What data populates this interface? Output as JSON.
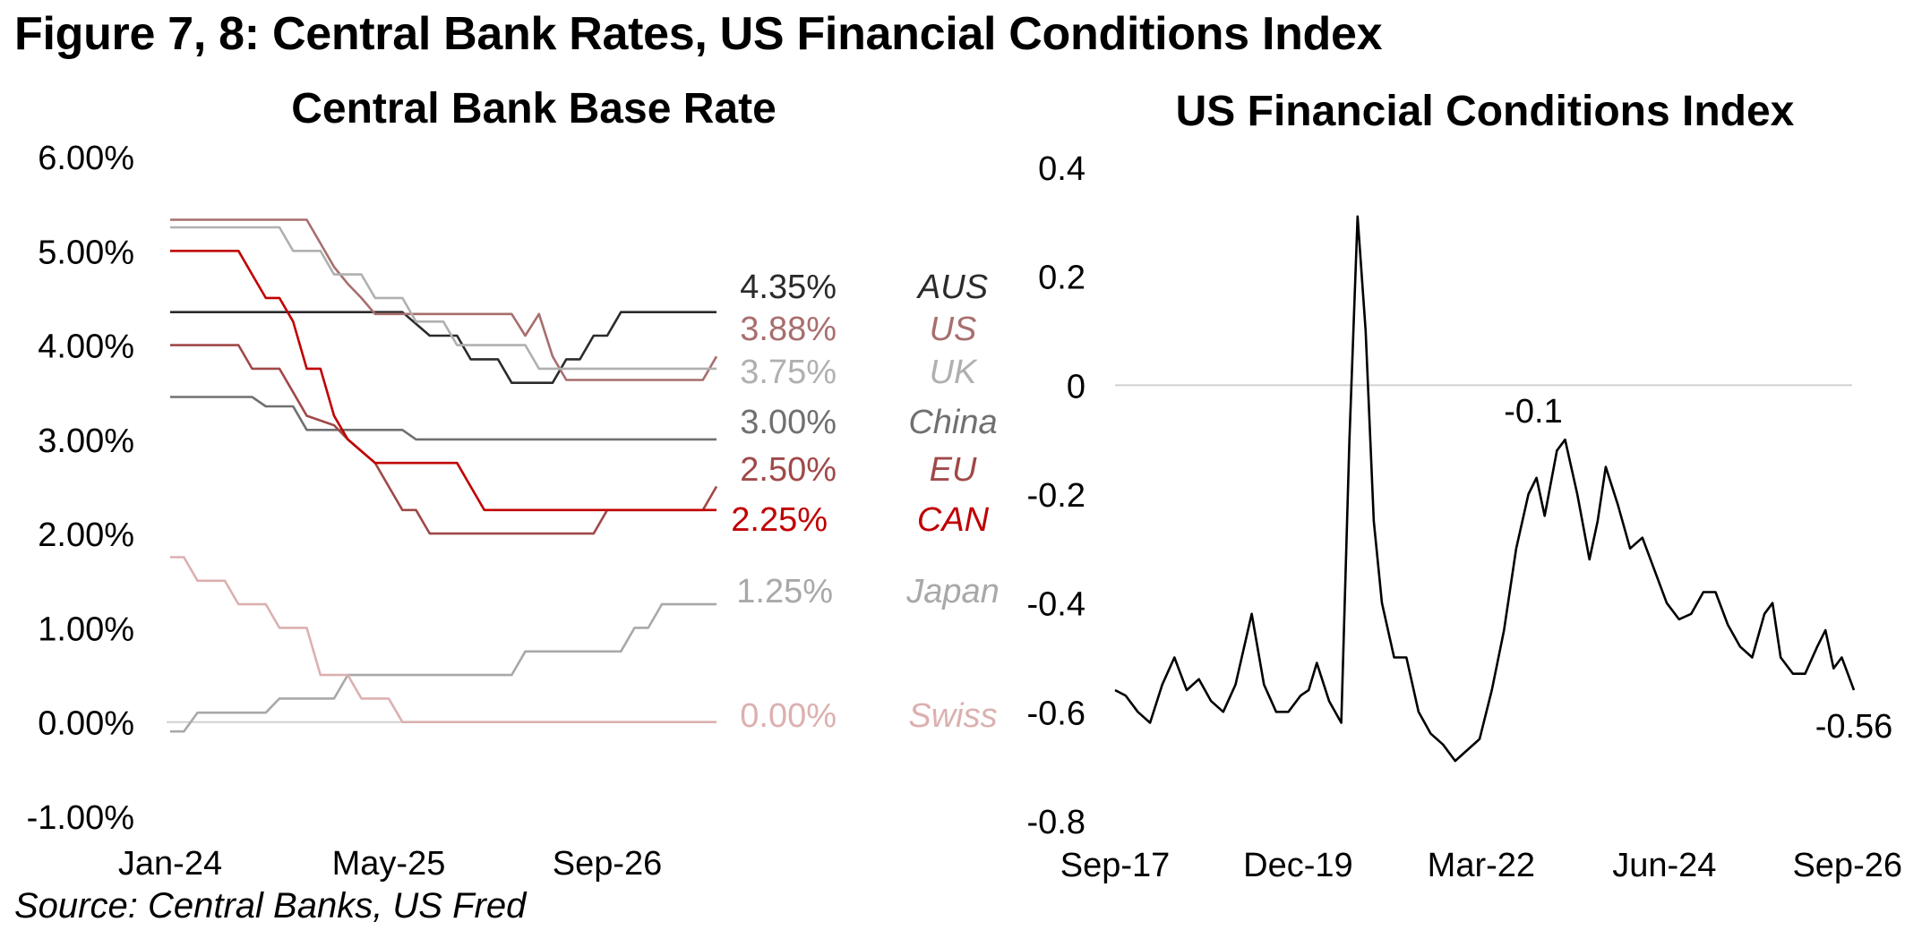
{
  "figure_title": "Figure 7, 8: Central Bank Rates, US Financial Conditions Index",
  "source": "Source: Central Banks, US Fred",
  "chart_data": [
    {
      "type": "line",
      "title": "Central Bank Base Rate",
      "y_ticks": [
        "6.00%",
        "5.00%",
        "4.00%",
        "3.00%",
        "2.00%",
        "1.00%",
        "0.00%",
        "-1.00%"
      ],
      "x_ticks": [
        "Jan-24",
        "May-25",
        "Sep-26"
      ],
      "ylim": [
        -1.0,
        6.0
      ],
      "xlim": [
        "2024-01",
        "2026-09"
      ],
      "baseline": 0,
      "series": [
        {
          "name": "AUS",
          "end_label": "4.35%",
          "color": "#2b2b2b",
          "points": [
            [
              0,
              4.35
            ],
            [
              17,
              4.35
            ],
            [
              19,
              4.1
            ],
            [
              21,
              4.1
            ],
            [
              22,
              3.85
            ],
            [
              24,
              3.85
            ],
            [
              25,
              3.6
            ],
            [
              28,
              3.6
            ],
            [
              29,
              3.85
            ],
            [
              30,
              3.85
            ],
            [
              31,
              4.1
            ],
            [
              32,
              4.1
            ],
            [
              33,
              4.35
            ],
            [
              40,
              4.35
            ]
          ]
        },
        {
          "name": "US",
          "end_label": "3.88%",
          "color": "#a86e6e",
          "points": [
            [
              0,
              5.33
            ],
            [
              10,
              5.33
            ],
            [
              11,
              5.08
            ],
            [
              12,
              4.83
            ],
            [
              13,
              4.65
            ],
            [
              14,
              4.5
            ],
            [
              15,
              4.33
            ],
            [
              25,
              4.33
            ],
            [
              26,
              4.1
            ],
            [
              27,
              4.33
            ],
            [
              28,
              3.88
            ],
            [
              29,
              3.63
            ],
            [
              38,
              3.63
            ],
            [
              39,
              3.63
            ],
            [
              40,
              3.88
            ]
          ]
        },
        {
          "name": "UK",
          "end_label": "3.75%",
          "color": "#b0b0b0",
          "points": [
            [
              0,
              5.25
            ],
            [
              8,
              5.25
            ],
            [
              9,
              5.0
            ],
            [
              11,
              5.0
            ],
            [
              12,
              4.75
            ],
            [
              14,
              4.75
            ],
            [
              15,
              4.5
            ],
            [
              17,
              4.5
            ],
            [
              18,
              4.25
            ],
            [
              20,
              4.25
            ],
            [
              21,
              4.0
            ],
            [
              25,
              4.0
            ],
            [
              26,
              4.0
            ],
            [
              27,
              3.75
            ],
            [
              40,
              3.75
            ]
          ]
        },
        {
          "name": "China",
          "end_label": "3.00%",
          "color": "#707070",
          "points": [
            [
              0,
              3.45
            ],
            [
              6,
              3.45
            ],
            [
              7,
              3.35
            ],
            [
              9,
              3.35
            ],
            [
              10,
              3.1
            ],
            [
              17,
              3.1
            ],
            [
              18,
              3.0
            ],
            [
              40,
              3.0
            ]
          ]
        },
        {
          "name": "EU",
          "end_label": "2.50%",
          "color": "#a04848",
          "points": [
            [
              0,
              4.0
            ],
            [
              5,
              4.0
            ],
            [
              6,
              3.75
            ],
            [
              8,
              3.75
            ],
            [
              9,
              3.5
            ],
            [
              10,
              3.25
            ],
            [
              12,
              3.15
            ],
            [
              13,
              3.0
            ],
            [
              15,
              2.75
            ],
            [
              16,
              2.5
            ],
            [
              17,
              2.25
            ],
            [
              18,
              2.25
            ],
            [
              19,
              2.0
            ],
            [
              31,
              2.0
            ],
            [
              32,
              2.25
            ],
            [
              39,
              2.25
            ],
            [
              40,
              2.5
            ]
          ]
        },
        {
          "name": "CAN",
          "end_label": "2.25%",
          "color": "#c00000",
          "points": [
            [
              0,
              5.0
            ],
            [
              5,
              5.0
            ],
            [
              6,
              4.75
            ],
            [
              7,
              4.5
            ],
            [
              8,
              4.5
            ],
            [
              9,
              4.25
            ],
            [
              10,
              3.75
            ],
            [
              11,
              3.75
            ],
            [
              12,
              3.25
            ],
            [
              13,
              3.0
            ],
            [
              15,
              2.75
            ],
            [
              21,
              2.75
            ],
            [
              22,
              2.5
            ],
            [
              23,
              2.25
            ],
            [
              40,
              2.25
            ]
          ]
        },
        {
          "name": "Japan",
          "end_label": "1.25%",
          "color": "#a8a8a8",
          "points": [
            [
              0,
              -0.1
            ],
            [
              1,
              -0.1
            ],
            [
              2,
              0.1
            ],
            [
              7,
              0.1
            ],
            [
              8,
              0.25
            ],
            [
              12,
              0.25
            ],
            [
              13,
              0.5
            ],
            [
              24,
              0.5
            ],
            [
              25,
              0.5
            ],
            [
              26,
              0.75
            ],
            [
              33,
              0.75
            ],
            [
              34,
              1.0
            ],
            [
              35,
              1.0
            ],
            [
              36,
              1.25
            ],
            [
              40,
              1.25
            ]
          ]
        },
        {
          "name": "Swiss",
          "end_label": "0.00%",
          "color": "#dcb0b0",
          "points": [
            [
              0,
              1.75
            ],
            [
              1,
              1.75
            ],
            [
              2,
              1.5
            ],
            [
              4,
              1.5
            ],
            [
              5,
              1.25
            ],
            [
              7,
              1.25
            ],
            [
              8,
              1.0
            ],
            [
              10,
              1.0
            ],
            [
              11,
              0.5
            ],
            [
              13,
              0.5
            ],
            [
              14,
              0.25
            ],
            [
              16,
              0.25
            ],
            [
              17,
              0.0
            ],
            [
              40,
              0.0
            ]
          ]
        }
      ]
    },
    {
      "type": "line",
      "title": "US Financial Conditions Index",
      "y_ticks": [
        "0.4",
        "0.2",
        "0",
        "-0.2",
        "-0.4",
        "-0.6",
        "-0.8"
      ],
      "x_ticks": [
        "Sep-17",
        "Dec-19",
        "Mar-22",
        "Jun-24",
        "Sep-26"
      ],
      "ylim": [
        -0.8,
        0.4
      ],
      "xlim": [
        "2017-09",
        "2026-09"
      ],
      "baseline": 0,
      "annotations": [
        {
          "label": "-0.1",
          "x": 2022.6,
          "y": -0.1
        },
        {
          "label": "-0.56",
          "x": 2026.7,
          "y": -0.56
        }
      ],
      "series": [
        {
          "name": "",
          "color": "#000000",
          "points": [
            [
              2017.67,
              -0.56
            ],
            [
              2017.8,
              -0.57
            ],
            [
              2017.95,
              -0.6
            ],
            [
              2018.1,
              -0.62
            ],
            [
              2018.25,
              -0.55
            ],
            [
              2018.4,
              -0.5
            ],
            [
              2018.55,
              -0.56
            ],
            [
              2018.7,
              -0.54
            ],
            [
              2018.85,
              -0.58
            ],
            [
              2019.0,
              -0.6
            ],
            [
              2019.15,
              -0.55
            ],
            [
              2019.35,
              -0.42
            ],
            [
              2019.5,
              -0.55
            ],
            [
              2019.65,
              -0.6
            ],
            [
              2019.8,
              -0.6
            ],
            [
              2019.95,
              -0.57
            ],
            [
              2020.05,
              -0.56
            ],
            [
              2020.15,
              -0.51
            ],
            [
              2020.3,
              -0.58
            ],
            [
              2020.45,
              -0.62
            ],
            [
              2020.55,
              -0.1
            ],
            [
              2020.65,
              0.31
            ],
            [
              2020.75,
              0.1
            ],
            [
              2020.85,
              -0.25
            ],
            [
              2020.95,
              -0.4
            ],
            [
              2021.1,
              -0.5
            ],
            [
              2021.25,
              -0.5
            ],
            [
              2021.4,
              -0.6
            ],
            [
              2021.55,
              -0.64
            ],
            [
              2021.7,
              -0.66
            ],
            [
              2021.85,
              -0.69
            ],
            [
              2022.0,
              -0.67
            ],
            [
              2022.15,
              -0.65
            ],
            [
              2022.3,
              -0.56
            ],
            [
              2022.45,
              -0.45
            ],
            [
              2022.6,
              -0.3
            ],
            [
              2022.75,
              -0.2
            ],
            [
              2022.85,
              -0.17
            ],
            [
              2022.95,
              -0.24
            ],
            [
              2023.1,
              -0.12
            ],
            [
              2023.2,
              -0.1
            ],
            [
              2023.35,
              -0.2
            ],
            [
              2023.5,
              -0.32
            ],
            [
              2023.6,
              -0.25
            ],
            [
              2023.7,
              -0.15
            ],
            [
              2023.85,
              -0.22
            ],
            [
              2024.0,
              -0.3
            ],
            [
              2024.15,
              -0.28
            ],
            [
              2024.3,
              -0.34
            ],
            [
              2024.45,
              -0.4
            ],
            [
              2024.6,
              -0.43
            ],
            [
              2024.75,
              -0.42
            ],
            [
              2024.9,
              -0.38
            ],
            [
              2025.05,
              -0.38
            ],
            [
              2025.2,
              -0.44
            ],
            [
              2025.35,
              -0.48
            ],
            [
              2025.5,
              -0.5
            ],
            [
              2025.65,
              -0.42
            ],
            [
              2025.75,
              -0.4
            ],
            [
              2025.85,
              -0.5
            ],
            [
              2026.0,
              -0.53
            ],
            [
              2026.15,
              -0.53
            ],
            [
              2026.3,
              -0.48
            ],
            [
              2026.4,
              -0.45
            ],
            [
              2026.5,
              -0.52
            ],
            [
              2026.6,
              -0.5
            ],
            [
              2026.75,
              -0.56
            ]
          ]
        }
      ]
    }
  ]
}
